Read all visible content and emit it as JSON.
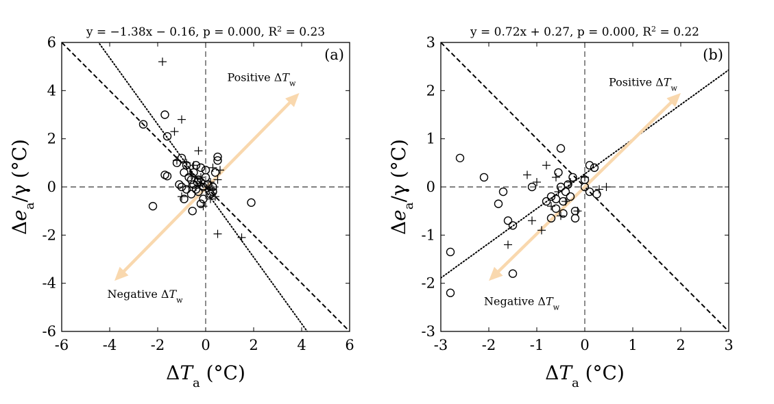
{
  "chart_data": [
    {
      "type": "scatter",
      "panel_label": "(a)",
      "title": "y = −1.38x − 0.16,  p = 0.000,  R²  =  0.23",
      "title_parts": {
        "pre": "y = −1.38x − 0.16,  p = 0.000,  R",
        "sup": "2",
        "post": "  =  0.23"
      },
      "xlabel": {
        "main": "Δ",
        "var": "T",
        "sub": "a",
        "unit": " (°C)"
      },
      "ylabel": {
        "main": "Δ",
        "var": "e",
        "sub": "a",
        "unit": "/γ (°C)"
      },
      "xlim": [
        -6,
        6
      ],
      "ylim": [
        -6,
        6
      ],
      "xticks": [
        -6,
        -4,
        -2,
        0,
        2,
        4,
        6
      ],
      "yticks": [
        -6,
        -4,
        -2,
        0,
        2,
        4,
        6
      ],
      "xtick_labels": [
        "-6",
        "-4",
        "-2",
        "0",
        "2",
        "4",
        "6"
      ],
      "ytick_labels": [
        "-6",
        "-4",
        "-2",
        "0",
        "2",
        "4",
        "6"
      ],
      "fit_line": {
        "slope": -1.38,
        "intercept": -0.16,
        "style": "dotted"
      },
      "reference_line": {
        "slope": -1,
        "intercept": 0,
        "style": "dashed"
      },
      "arrow": {
        "from": [
          -3.8,
          -3.9
        ],
        "to": [
          3.9,
          3.9
        ],
        "color": "#f9d8ae"
      },
      "annotations": {
        "positive": {
          "text": "Positive Δ",
          "var": "T",
          "sub": "w",
          "x": 0.9,
          "y": 4.4
        },
        "negative": {
          "text": "Negative Δ",
          "var": "T",
          "sub": "w",
          "x": -4.1,
          "y": -4.6
        }
      },
      "series": [
        {
          "marker": "circle",
          "points": [
            [
              -2.6,
              2.6
            ],
            [
              -1.7,
              3.0
            ],
            [
              -1.6,
              2.1
            ],
            [
              -2.2,
              -0.8
            ],
            [
              -1.7,
              0.5
            ],
            [
              -1.6,
              0.45
            ],
            [
              -1.2,
              1.0
            ],
            [
              -1.0,
              1.2
            ],
            [
              -0.8,
              0.9
            ],
            [
              -0.9,
              0.6
            ],
            [
              -1.1,
              0.1
            ],
            [
              -1.0,
              0.0
            ],
            [
              -0.8,
              -0.1
            ],
            [
              -0.6,
              0.3
            ],
            [
              -0.5,
              0.6
            ],
            [
              -0.4,
              0.9
            ],
            [
              -0.3,
              0.3
            ],
            [
              -0.5,
              0.1
            ],
            [
              -0.3,
              -0.2
            ],
            [
              -0.2,
              0.2
            ],
            [
              -0.1,
              -0.5
            ],
            [
              0.0,
              0.4
            ],
            [
              0.0,
              0.7
            ],
            [
              0.1,
              0.1
            ],
            [
              0.2,
              -0.3
            ],
            [
              0.3,
              0.0
            ],
            [
              0.4,
              0.6
            ],
            [
              0.5,
              1.1
            ],
            [
              0.5,
              1.25
            ],
            [
              -0.1,
              0.0
            ],
            [
              -0.4,
              -0.1
            ],
            [
              -0.6,
              -0.3
            ],
            [
              -0.9,
              -0.5
            ],
            [
              -0.55,
              -1.0
            ],
            [
              -0.2,
              -0.7
            ],
            [
              0.3,
              -0.2
            ],
            [
              -0.2,
              0.8
            ],
            [
              1.9,
              -0.65
            ],
            [
              -0.7,
              0.4
            ],
            [
              -0.35,
              0.2
            ]
          ]
        },
        {
          "marker": "plus",
          "points": [
            [
              -1.8,
              5.2
            ],
            [
              -1.3,
              2.3
            ],
            [
              -1.0,
              2.8
            ],
            [
              -1.2,
              1.1
            ],
            [
              -0.8,
              1.0
            ],
            [
              -0.6,
              0.5
            ],
            [
              -0.3,
              1.5
            ],
            [
              -0.2,
              0.4
            ],
            [
              0.0,
              -0.1
            ],
            [
              0.2,
              0.2
            ],
            [
              0.3,
              0.8
            ],
            [
              0.6,
              0.7
            ],
            [
              0.5,
              -1.95
            ],
            [
              1.5,
              -2.1
            ],
            [
              -0.1,
              -0.8
            ],
            [
              0.4,
              -0.4
            ],
            [
              -0.7,
              0.0
            ],
            [
              -1.0,
              -0.4
            ],
            [
              0.1,
              0.0
            ],
            [
              0.3,
              -0.1
            ],
            [
              -0.5,
              0.9
            ],
            [
              -0.4,
              0.0
            ],
            [
              0.5,
              0.3
            ],
            [
              0.2,
              -0.5
            ]
          ]
        }
      ]
    },
    {
      "type": "scatter",
      "panel_label": "(b)",
      "title": "y = 0.72x + 0.27,  p = 0.000,  R²  =  0.22",
      "title_parts": {
        "pre": "y = 0.72x + 0.27,  p = 0.000,  R",
        "sup": "2",
        "post": "  =  0.22"
      },
      "xlabel": {
        "main": "Δ",
        "var": "T",
        "sub": "a",
        "unit": " (°C)"
      },
      "ylabel": {
        "main": "Δ",
        "var": "e",
        "sub": "a",
        "unit": "/γ (°C)"
      },
      "xlim": [
        -3,
        3
      ],
      "ylim": [
        -3,
        3
      ],
      "xticks": [
        -3,
        -2,
        -1,
        0,
        1,
        2,
        3
      ],
      "yticks": [
        -3,
        -2,
        -1,
        0,
        1,
        2,
        3
      ],
      "xtick_labels": [
        "-3",
        "-2",
        "-1",
        "0",
        "1",
        "2",
        "3"
      ],
      "ytick_labels": [
        "-3",
        "-2",
        "-1",
        "0",
        "1",
        "2",
        "3"
      ],
      "fit_line": {
        "slope": 0.72,
        "intercept": 0.27,
        "style": "dotted"
      },
      "reference_line": {
        "slope": -1,
        "intercept": 0,
        "style": "dashed"
      },
      "arrow": {
        "from": [
          -2.0,
          -1.95
        ],
        "to": [
          2.0,
          1.95
        ],
        "color": "#f9d8ae"
      },
      "annotations": {
        "positive": {
          "text": "Positive Δ",
          "var": "T",
          "sub": "w",
          "x": 0.5,
          "y": 2.1
        },
        "negative": {
          "text": "Negative Δ",
          "var": "T",
          "sub": "w",
          "x": -2.1,
          "y": -2.45
        }
      },
      "series": [
        {
          "marker": "circle",
          "points": [
            [
              -2.6,
              0.6
            ],
            [
              -2.1,
              0.2
            ],
            [
              -2.8,
              -1.35
            ],
            [
              -2.8,
              -2.2
            ],
            [
              -1.8,
              -0.35
            ],
            [
              -1.7,
              -0.1
            ],
            [
              -1.6,
              -0.7
            ],
            [
              -1.5,
              -0.8
            ],
            [
              -1.5,
              -1.8
            ],
            [
              -1.1,
              0.0
            ],
            [
              -0.8,
              -0.3
            ],
            [
              -0.7,
              -0.2
            ],
            [
              -0.6,
              -0.25
            ],
            [
              -0.55,
              0.3
            ],
            [
              -0.5,
              0.8
            ],
            [
              -0.5,
              0.0
            ],
            [
              -0.45,
              -0.3
            ],
            [
              -0.4,
              -0.1
            ],
            [
              -0.35,
              0.05
            ],
            [
              -0.3,
              -0.2
            ],
            [
              -0.25,
              0.2
            ],
            [
              -0.2,
              -0.5
            ],
            [
              -0.2,
              -0.65
            ],
            [
              -0.6,
              -0.45
            ],
            [
              -0.7,
              -0.65
            ],
            [
              0.0,
              0.0
            ],
            [
              0.0,
              0.15
            ],
            [
              0.1,
              0.45
            ],
            [
              0.2,
              0.4
            ],
            [
              0.25,
              -0.15
            ],
            [
              0.1,
              -0.1
            ],
            [
              -0.45,
              -0.55
            ]
          ]
        },
        {
          "marker": "plus",
          "points": [
            [
              -1.6,
              -1.2
            ],
            [
              -1.2,
              0.25
            ],
            [
              -1.1,
              -0.7
            ],
            [
              -0.9,
              -0.9
            ],
            [
              -0.8,
              0.45
            ],
            [
              -0.6,
              0.2
            ],
            [
              -0.5,
              -0.6
            ],
            [
              -0.4,
              -0.3
            ],
            [
              -0.3,
              0.1
            ],
            [
              -0.15,
              -0.5
            ],
            [
              0.0,
              0.2
            ],
            [
              0.3,
              -0.05
            ],
            [
              0.45,
              0.0
            ],
            [
              -0.7,
              -0.4
            ],
            [
              -1.0,
              0.1
            ],
            [
              -0.55,
              -0.1
            ]
          ]
        }
      ]
    }
  ]
}
